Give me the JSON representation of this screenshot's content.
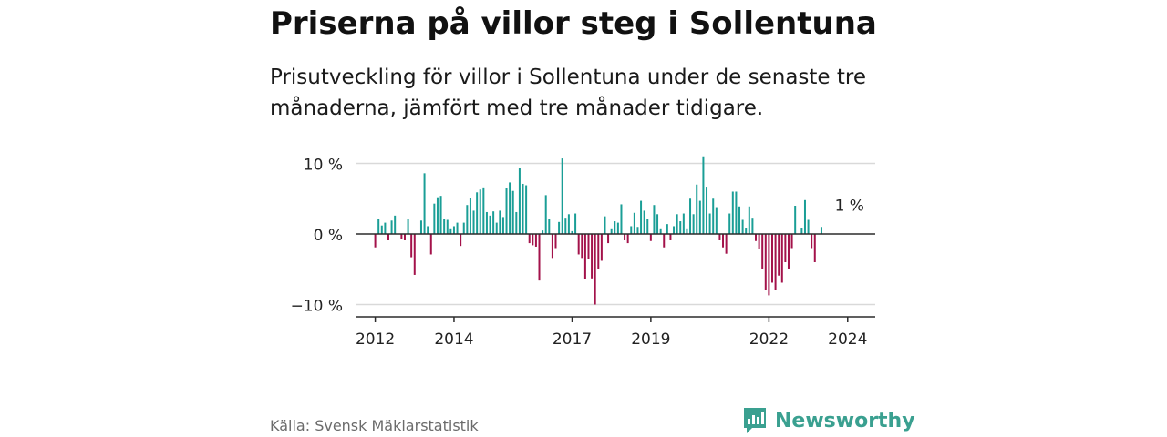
{
  "title": "Priserna på villor steg i Sollentuna",
  "subtitle": "Prisutveckling för villor i Sollentuna under de senaste tre månaderna, jämfört med tre månader tidigare.",
  "source": "Källa: Svensk Mäklarstatistik",
  "brand": "Newsworthy",
  "colors": {
    "positive": "#1a9e96",
    "negative": "#a3124a",
    "brand": "#3aa090"
  },
  "chart_data": {
    "type": "bar",
    "ylabel": "",
    "xlabel": "",
    "ylim": [
      -11,
      11
    ],
    "y_ticks": [
      {
        "value": 10,
        "label": "10 %"
      },
      {
        "value": 0,
        "label": "0 %"
      },
      {
        "value": -10,
        "label": "−10 %"
      }
    ],
    "x_range": [
      2011.5,
      2024.7
    ],
    "x_ticks": [
      {
        "value": 2012,
        "label": "2012"
      },
      {
        "value": 2014,
        "label": "2014"
      },
      {
        "value": 2017,
        "label": "2017"
      },
      {
        "value": 2019,
        "label": "2019"
      },
      {
        "value": 2022,
        "label": "2022"
      },
      {
        "value": 2024,
        "label": "2024"
      }
    ],
    "annotation": {
      "label": "1 %",
      "x": 2024.0,
      "y": 1
    },
    "x_start": 2012.0,
    "x_step": 0.08333,
    "values": [
      -1.9,
      2.1,
      1.2,
      1.6,
      -0.9,
      1.9,
      2.6,
      null,
      -0.7,
      -0.9,
      2.1,
      -3.3,
      -5.8,
      null,
      1.9,
      8.6,
      1.1,
      -2.9,
      4.3,
      5.2,
      5.4,
      2.1,
      2.0,
      0.8,
      1.1,
      1.6,
      -1.7,
      1.6,
      4.1,
      5.1,
      3.3,
      5.9,
      6.3,
      6.6,
      3.1,
      2.6,
      3.2,
      1.6,
      3.3,
      2.4,
      6.5,
      7.3,
      6.1,
      3.1,
      9.4,
      7.1,
      6.9,
      -1.3,
      -1.6,
      -1.8,
      -6.6,
      0.5,
      5.5,
      2.1,
      -3.4,
      -2.0,
      1.7,
      10.7,
      2.3,
      2.8,
      0.4,
      2.9,
      -2.9,
      -3.4,
      -6.4,
      -3.6,
      -6.3,
      -10.0,
      -4.9,
      -3.8,
      2.5,
      -1.3,
      0.8,
      1.8,
      1.6,
      4.2,
      -0.9,
      -1.3,
      1.1,
      3.0,
      1.0,
      4.7,
      3.3,
      2.1,
      -1.0,
      4.1,
      2.8,
      0.8,
      -1.9,
      1.4,
      -0.9,
      1.1,
      2.8,
      1.8,
      2.9,
      0.8,
      5.0,
      2.8,
      7.0,
      4.7,
      11.0,
      6.7,
      2.9,
      5.0,
      3.8,
      -0.9,
      -1.9,
      -2.8,
      2.9,
      6.0,
      6.0,
      3.9,
      2.0,
      0.9,
      3.9,
      2.3,
      -1.0,
      -2.1,
      -4.9,
      -7.9,
      -8.7,
      -6.9,
      -7.9,
      -5.9,
      -6.9,
      -4.0,
      -4.9,
      -2.0,
      4.0,
      null,
      0.9,
      4.8,
      2.0,
      -2.0,
      -4.0,
      null,
      1.0
    ]
  }
}
